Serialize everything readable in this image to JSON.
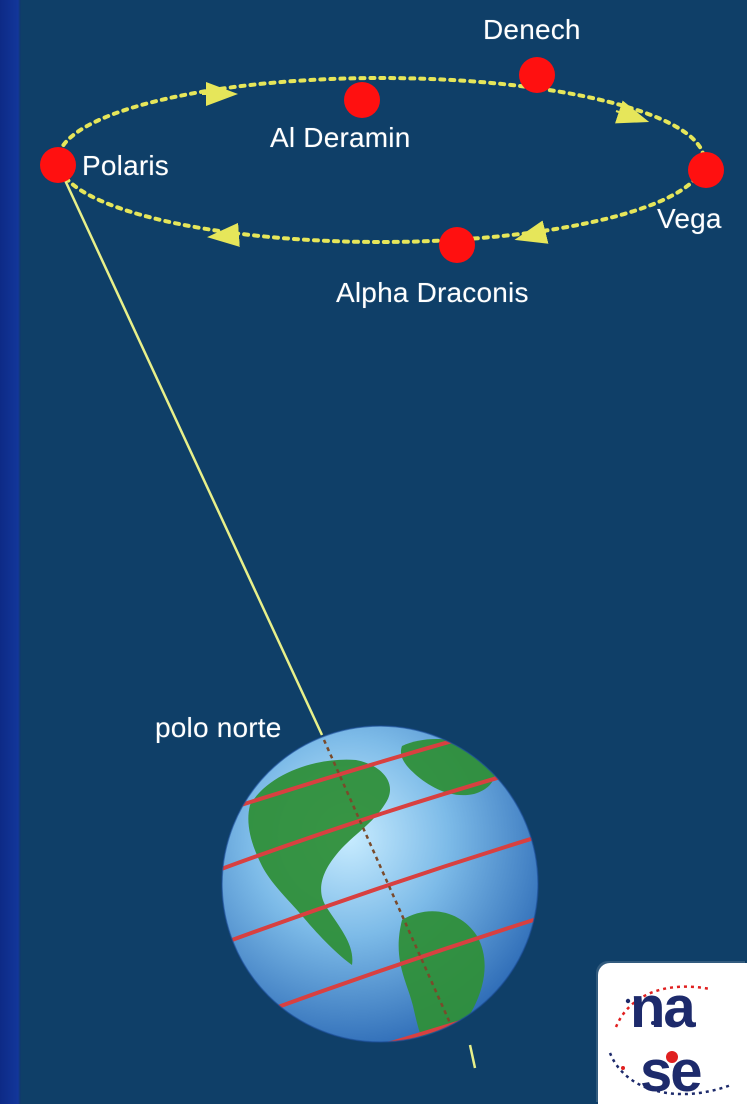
{
  "labels": {
    "denech": "Denech",
    "al_deramin": "Al Deramin",
    "polaris": "Polaris",
    "vega": "Vega",
    "alpha_draconis": "Alpha Draconis",
    "polo_norte": "polo norte"
  },
  "logo": {
    "text": "nase"
  },
  "colors": {
    "background": "#0f3f68",
    "star": "#ff1010",
    "orbit": "#e6e65a",
    "axis": "#e8f08a",
    "ocean": "#5aa4dc",
    "land": "#2f8f3a",
    "latitude": "#d84040",
    "logo_dark": "#1d2a6b",
    "logo_red": "#e02020"
  }
}
